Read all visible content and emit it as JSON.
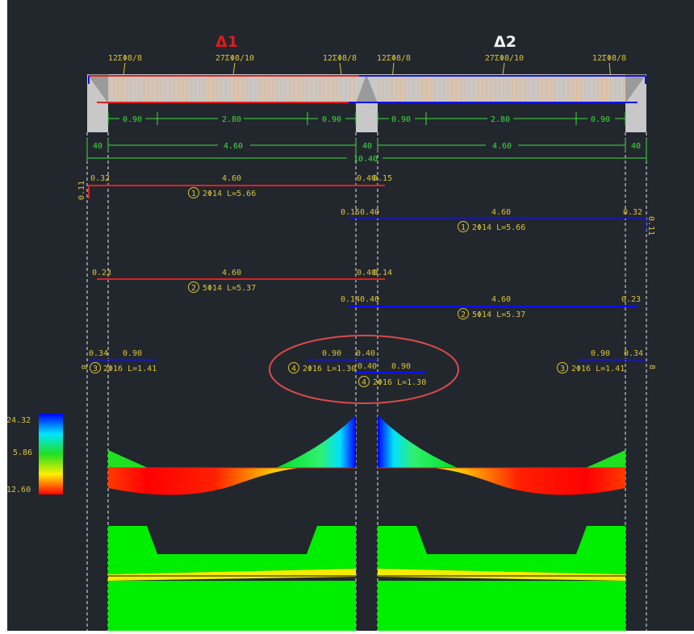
{
  "colors": {
    "background": "#22272e",
    "span1_title": "#e01b1b",
    "span2_title": "#f2f2f2",
    "bar_span1": "#e02020",
    "bar_span2": "#1010ee",
    "dimension": "#3ddc3d",
    "text": "#d8c23a",
    "annotation_ellipse": "#d94a4a",
    "stirrups": "#f0b67f",
    "support": "#c8c8c8"
  },
  "spans": [
    {
      "title": "Δ1",
      "stirrups": [
        "12ΣΦ8/8",
        "27ΣΦ8/10",
        "12ΣΦ8/8"
      ]
    },
    {
      "title": "Δ2",
      "stirrups": [
        "12ΣΦ8/8",
        "27ΣΦ8/10",
        "12ΣΦ8/8"
      ]
    }
  ],
  "dims": {
    "row1": [
      "0.90",
      "2.80",
      "0.90",
      "0.90",
      "2.80",
      "0.90"
    ],
    "row2": [
      "40",
      "4.60",
      "40",
      "4.60",
      "40"
    ],
    "total": "10.40"
  },
  "bars": {
    "b1_left": {
      "l": "0.32",
      "m": "4.60",
      "r": "0.40",
      "r2": "0.15",
      "hook": "0.11",
      "num": "1",
      "label": "2Φ14 L=5.66"
    },
    "b1_right": {
      "l": "0.15",
      "l2": "0.40",
      "m": "4.60",
      "r": "0.32",
      "hook": "0.11",
      "num": "1",
      "label": "2Φ14 L=5.66"
    },
    "b2_left": {
      "l": "0.23",
      "m": "4.60",
      "r": "0.40",
      "r2": "0.14",
      "num": "2",
      "label": "5Φ14 L=5.37"
    },
    "b2_right": {
      "l": "0.14",
      "l2": "0.40",
      "m": "4.60",
      "r": "0.23",
      "num": "2",
      "label": "5Φ14 L=5.37"
    },
    "b3_left": {
      "a": "0.34",
      "b": "0.90",
      "hook": "8",
      "num": "3",
      "label": "2Φ16 L=1.41"
    },
    "b4_mid1": {
      "a": "0.90",
      "b": "0.40",
      "num": "4",
      "label": "2Φ16 L=1.30"
    },
    "b4_mid2": {
      "a": "0.40",
      "b": "0.90",
      "num": "4",
      "label": "2Φ16 L=1.30"
    },
    "b3_right": {
      "a": "0.90",
      "b": "0.34",
      "hook": "8",
      "num": "3",
      "label": "2Φ16 L=1.41"
    }
  },
  "legend": {
    "top": "24.32",
    "mid": "5.86",
    "bottom": "12.60"
  }
}
